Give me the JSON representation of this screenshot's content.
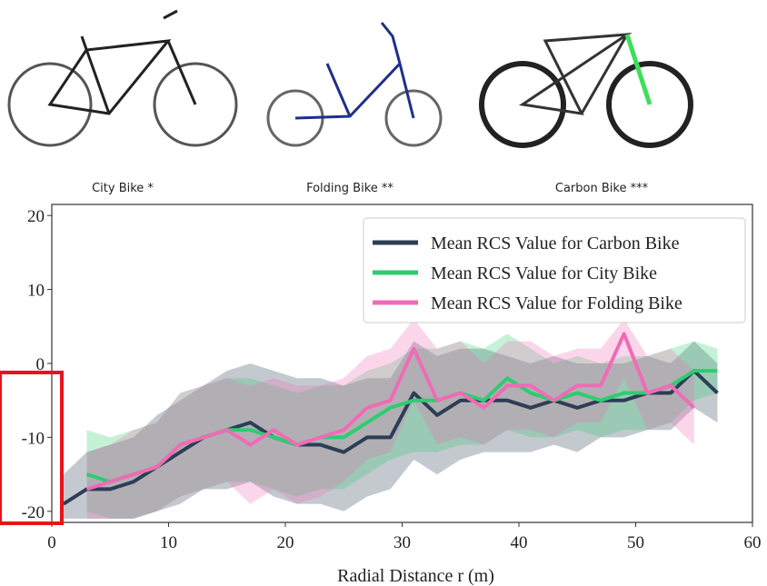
{
  "photos": [
    {
      "caption": "City Bike *"
    },
    {
      "caption": "Folding Bike **"
    },
    {
      "caption": "Carbon Bike ***"
    }
  ],
  "chart_data": {
    "type": "line",
    "x_label": "Radial Distance r (m)",
    "x": [
      1,
      3,
      5,
      7,
      9,
      11,
      13,
      15,
      17,
      19,
      21,
      23,
      25,
      27,
      29,
      31,
      33,
      35,
      37,
      39,
      41,
      43,
      45,
      47,
      49,
      51,
      53,
      55,
      57
    ],
    "xlim": [
      0,
      60
    ],
    "xticks": [
      0,
      10,
      20,
      30,
      40,
      50,
      60
    ],
    "ylim": [
      -21.5,
      21.5
    ],
    "yticks": [
      -20,
      -10,
      0,
      10,
      20
    ],
    "grid": false,
    "legend": "upper right",
    "series": [
      {
        "name": "Mean RCS Value for Carbon Bike",
        "color": "#2c3e55",
        "values": [
          -19,
          -17,
          -17,
          -16,
          -14,
          -12,
          -10,
          -9,
          -8,
          -10,
          -11,
          -11,
          -12,
          -10,
          -10,
          -4,
          -7,
          -5,
          -5,
          -5,
          -6,
          -5,
          -6,
          -5,
          -5,
          -4,
          -4,
          -1,
          -4
        ],
        "lower": [
          -21,
          -21,
          -21,
          -21,
          -20,
          -19,
          -17,
          -17,
          -16,
          -18,
          -19,
          -19,
          -20,
          -18,
          -17,
          -13,
          -15,
          -13,
          -12,
          -12,
          -12,
          -11,
          -12,
          -10,
          -10,
          -9,
          -9,
          -6,
          -8
        ],
        "upper": [
          -15,
          -12,
          -11,
          -10,
          -7,
          -5,
          -3,
          -1,
          0,
          -1,
          -2,
          -2,
          -3,
          -2,
          -2,
          3,
          1,
          2,
          2,
          1,
          0,
          1,
          0,
          0,
          0,
          1,
          0,
          3,
          0
        ]
      },
      {
        "name": "Mean RCS Value for City Bike",
        "color": "#2ecc71",
        "values": [
          null,
          -15,
          -16,
          -15,
          -14,
          -11,
          -10,
          -9,
          -9,
          -10,
          -11,
          -10,
          -10,
          -8,
          -6,
          -5,
          -5,
          -4,
          -5,
          -2,
          -4,
          -5,
          -4,
          -5,
          -4,
          -4,
          -3,
          -1,
          -1
        ],
        "lower": [
          null,
          -20,
          -21,
          -21,
          -20,
          -18,
          -17,
          -16,
          -16,
          -17,
          -18,
          -17,
          -17,
          -15,
          -13,
          -12,
          -12,
          -11,
          -11,
          -9,
          -10,
          -10,
          -9,
          -10,
          -9,
          -9,
          -8,
          -5,
          -4
        ],
        "upper": [
          null,
          -9,
          -10,
          -9,
          -8,
          -4,
          -3,
          -2,
          -2,
          -3,
          -4,
          -3,
          -3,
          -1,
          0,
          2,
          2,
          3,
          2,
          4,
          2,
          0,
          1,
          0,
          1,
          1,
          2,
          3,
          2
        ]
      },
      {
        "name": "Mean RCS Value for Folding Bike",
        "color": "#f06bb5",
        "values": [
          null,
          -17,
          -16,
          -15,
          -14,
          -11,
          -10,
          -9,
          -11,
          -9,
          -11,
          -10,
          -9,
          -6,
          -5,
          2,
          -5,
          -4,
          -6,
          -3,
          -3,
          -5,
          -3,
          -3,
          4,
          -4,
          -3,
          -6,
          null
        ],
        "lower": [
          null,
          -21,
          -21,
          -21,
          -20,
          -18,
          -17,
          -16,
          -19,
          -17,
          -19,
          -18,
          -16,
          -13,
          -12,
          -5,
          -11,
          -10,
          -11,
          -9,
          -9,
          -10,
          -8,
          -8,
          -2,
          -9,
          -8,
          -11,
          null
        ],
        "upper": [
          null,
          -12,
          -11,
          -9,
          -8,
          -4,
          -3,
          -2,
          -3,
          -2,
          -3,
          -3,
          -2,
          1,
          2,
          6,
          2,
          3,
          0,
          3,
          3,
          1,
          2,
          2,
          6,
          1,
          2,
          -1,
          null
        ]
      }
    ]
  }
}
